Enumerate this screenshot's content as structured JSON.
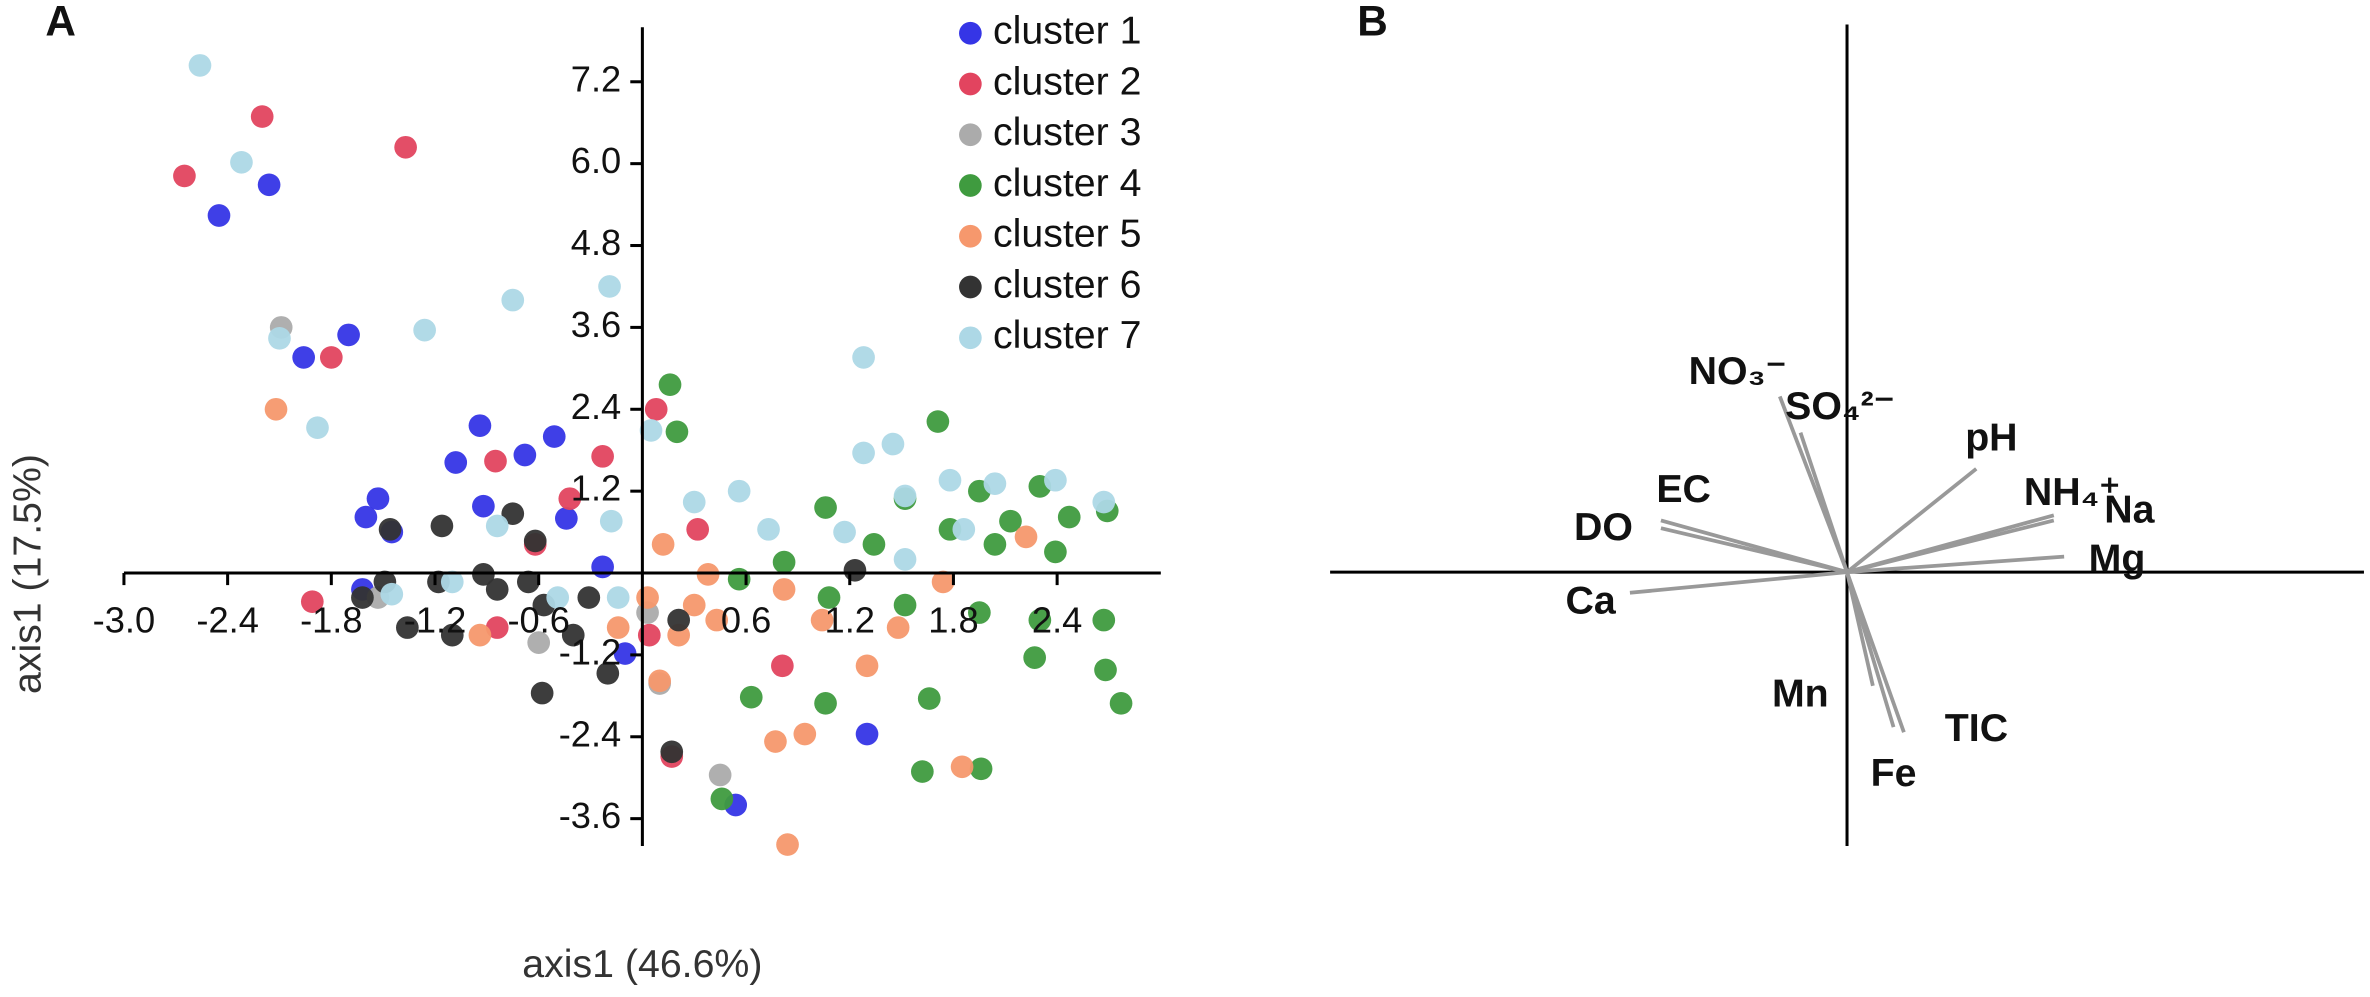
{
  "chart_data": [
    {
      "type": "scatter",
      "panel": "A",
      "xlabel": "axis1 (46.6%)",
      "ylabel": "axis1 (17.5%)",
      "xlim": [
        -3.0,
        3.0
      ],
      "ylim": [
        -4.0,
        8.0
      ],
      "xticks": [
        {
          "value": -3.0,
          "label": "-3.0"
        },
        -2.4,
        -1.8,
        -1.2,
        -0.6,
        0.6,
        1.2,
        1.8,
        2.4
      ],
      "yticks": [
        7.2,
        {
          "value": 6.0,
          "label": "6.0"
        },
        4.8,
        3.6,
        2.4,
        1.2,
        -1.2,
        -2.4,
        -3.6
      ],
      "series": [
        {
          "name": "cluster 1",
          "color": "#3535e6",
          "x": [
            -2.45,
            -2.16,
            -1.96,
            -1.7,
            -0.94,
            -1.08,
            -0.68,
            -0.51,
            -0.92,
            -1.53,
            -1.6,
            -1.45,
            -0.44,
            1.3,
            0.54,
            -1.62,
            -0.1,
            -0.23
          ],
          "y": [
            5.24,
            5.69,
            3.16,
            3.49,
            2.16,
            1.62,
            1.73,
            2.0,
            0.98,
            1.09,
            0.82,
            0.6,
            0.8,
            -2.36,
            -3.4,
            -0.24,
            -1.18,
            0.09
          ]
        },
        {
          "name": "cluster 2",
          "color": "#e2445f",
          "x": [
            -2.65,
            -2.2,
            -1.37,
            -1.8,
            0.08,
            -0.85,
            -0.23,
            -0.42,
            0.32,
            0.81,
            0.17,
            -1.91,
            -0.84,
            0.04,
            -0.62
          ],
          "y": [
            5.82,
            6.69,
            6.24,
            3.16,
            2.4,
            1.64,
            1.71,
            1.09,
            0.64,
            -1.36,
            -2.69,
            -0.42,
            -0.8,
            -0.91,
            0.42
          ]
        },
        {
          "name": "cluster 3",
          "color": "#ababab",
          "x": [
            -2.09,
            0.45,
            0.1,
            -1.53,
            -0.6,
            0.03
          ],
          "y": [
            3.6,
            -2.96,
            -1.62,
            -0.36,
            -1.02,
            -0.58
          ]
        },
        {
          "name": "cluster 4",
          "color": "#3f9b3f",
          "x": [
            0.16,
            1.71,
            0.2,
            1.06,
            1.52,
            1.95,
            2.3,
            2.69,
            2.04,
            2.39,
            0.82,
            0.56,
            1.08,
            1.52,
            1.95,
            2.3,
            2.67,
            2.27,
            2.68,
            2.77,
            1.06,
            1.66,
            0.63,
            1.62,
            1.96,
            0.46,
            1.34,
            1.78,
            2.47,
            2.13
          ],
          "y": [
            2.76,
            2.22,
            2.07,
            0.96,
            1.09,
            1.2,
            1.27,
            0.91,
            0.42,
            0.31,
            0.16,
            -0.09,
            -0.36,
            -0.47,
            -0.58,
            -0.69,
            -0.69,
            -1.24,
            -1.42,
            -1.91,
            -1.91,
            -1.84,
            -1.82,
            -2.91,
            -2.87,
            -3.31,
            0.42,
            0.64,
            0.82,
            0.76
          ]
        },
        {
          "name": "cluster 5",
          "color": "#f6986d",
          "x": [
            -2.12,
            0.12,
            0.38,
            0.82,
            1.04,
            1.3,
            1.48,
            1.74,
            2.22,
            0.77,
            0.94,
            1.85,
            0.84,
            0.1,
            0.21,
            0.3,
            -0.94,
            -0.14,
            0.03,
            0.43
          ],
          "y": [
            2.4,
            0.42,
            -0.02,
            -0.24,
            -0.69,
            -1.36,
            -0.8,
            -0.13,
            0.53,
            -2.47,
            -2.36,
            -2.84,
            -3.98,
            -1.58,
            -0.91,
            -0.47,
            -0.91,
            -0.8,
            -0.36,
            -0.69
          ]
        },
        {
          "name": "cluster 6",
          "color": "#333333",
          "x": [
            -1.46,
            -1.16,
            -0.62,
            -0.75,
            -1.62,
            -1.36,
            -1.1,
            -0.84,
            -0.57,
            -0.4,
            -0.58,
            -0.2,
            0.21,
            0.17,
            1.23,
            -1.49,
            -1.18,
            -0.92,
            -0.66,
            -0.31
          ],
          "y": [
            0.64,
            0.69,
            0.47,
            0.87,
            -0.36,
            -0.8,
            -0.91,
            -0.24,
            -0.47,
            -0.91,
            -1.76,
            -1.47,
            -0.69,
            -2.62,
            0.04,
            -0.13,
            -0.13,
            -0.02,
            -0.13,
            -0.36
          ]
        },
        {
          "name": "cluster 7",
          "color": "#add8e6",
          "x": [
            -2.56,
            -2.32,
            -2.1,
            -1.88,
            -1.26,
            -0.75,
            -0.19,
            1.28,
            1.28,
            1.45,
            0.05,
            0.3,
            0.56,
            0.73,
            1.17,
            1.52,
            1.78,
            2.04,
            2.39,
            2.67,
            -0.84,
            -0.18,
            -1.45,
            -1.1,
            -0.49,
            -0.14,
            1.52,
            1.86
          ],
          "y": [
            7.44,
            6.02,
            3.44,
            2.13,
            3.56,
            4.0,
            4.2,
            3.16,
            1.76,
            1.89,
            2.09,
            1.04,
            1.2,
            0.64,
            0.6,
            1.13,
            1.36,
            1.31,
            1.36,
            1.04,
            0.69,
            0.76,
            -0.31,
            -0.13,
            -0.36,
            -0.36,
            0.2,
            0.64
          ]
        }
      ]
    },
    {
      "type": "biplot",
      "panel": "B",
      "color": "#999999",
      "xlim": [
        -1,
        1
      ],
      "ylim": [
        -0.53,
        1.06
      ],
      "loadings": [
        {
          "name": "NO₃⁻",
          "x": -0.13,
          "y": 0.34
        },
        {
          "name": "SO₄²⁻",
          "x": -0.09,
          "y": 0.27
        },
        {
          "name": "pH",
          "x": 0.25,
          "y": 0.2
        },
        {
          "name": "NH₄⁺",
          "x": 0.4,
          "y": 0.1
        },
        {
          "name": "Na",
          "x": 0.4,
          "y": 0.11
        },
        {
          "name": "Mg",
          "x": 0.42,
          "y": 0.03
        },
        {
          "name": "EC",
          "x": -0.36,
          "y": 0.1
        },
        {
          "name": "DO",
          "x": -0.36,
          "y": 0.085
        },
        {
          "name": "Ca",
          "x": -0.42,
          "y": -0.04
        },
        {
          "name": "Mn",
          "x": 0.05,
          "y": -0.22
        },
        {
          "name": "Fe",
          "x": 0.09,
          "y": -0.3
        },
        {
          "name": "TIC",
          "x": 0.11,
          "y": -0.31
        }
      ]
    }
  ]
}
